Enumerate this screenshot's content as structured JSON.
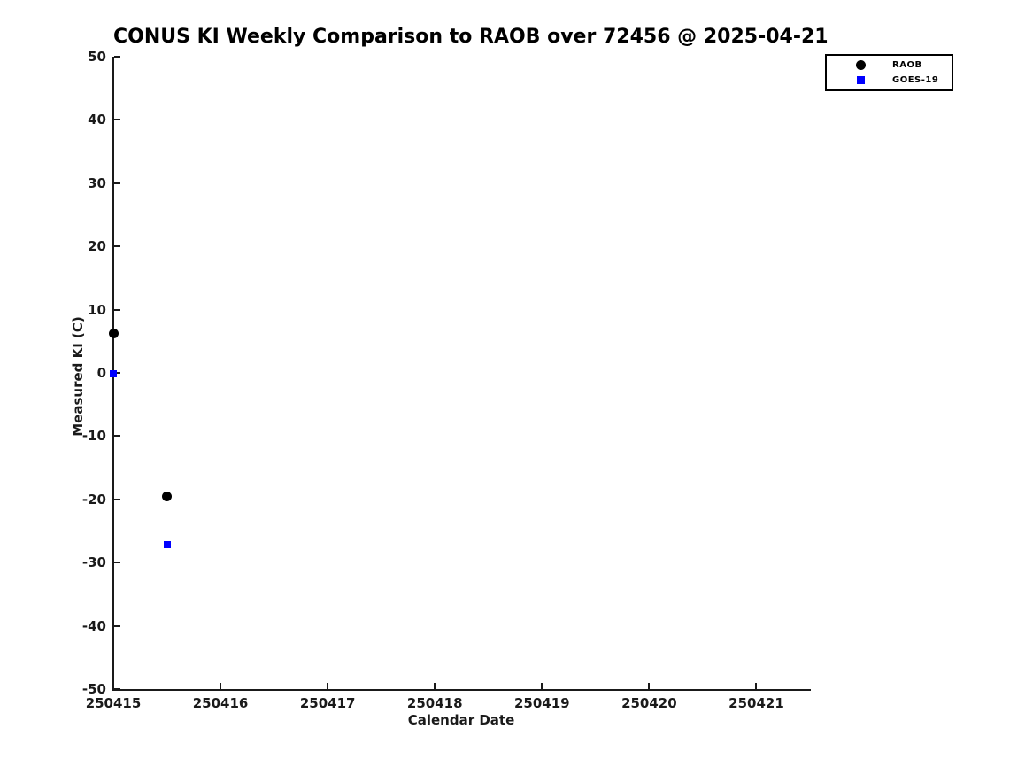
{
  "title": "CONUS KI Weekly Comparison to RAOB over 72456 @ 2025-04-21",
  "station_id": "72456",
  "valid_date": "2025-04-21",
  "chart_data": {
    "type": "scatter",
    "title": "CONUS KI Weekly Comparison to RAOB over 72456 @ 2025-04-21",
    "xlabel": "Calendar Date",
    "ylabel": "Measured KI (C)",
    "xlim": [
      250415,
      250421.5
    ],
    "ylim": [
      -50,
      50
    ],
    "x_ticks": [
      250415,
      250416,
      250417,
      250418,
      250419,
      250420,
      250421
    ],
    "y_ticks": [
      50,
      40,
      30,
      20,
      10,
      0,
      -10,
      -20,
      -30,
      -40,
      -50
    ],
    "grid": false,
    "legend_position": "top-right-outside",
    "colors": {
      "raob": "#000000",
      "goes19": "#0000ff"
    },
    "series": [
      {
        "name": "RAOB",
        "marker": "circle",
        "color": "#000000",
        "marker_size": 11,
        "points": [
          {
            "x": 250415.0,
            "y": 6.3
          },
          {
            "x": 250415.5,
            "y": -19.6
          }
        ]
      },
      {
        "name": "GOES-19",
        "marker": "square",
        "color": "#0000ff",
        "marker_size": 8,
        "points": [
          {
            "x": 250415.0,
            "y": -0.1
          },
          {
            "x": 250415.5,
            "y": -27.2
          }
        ]
      }
    ]
  }
}
